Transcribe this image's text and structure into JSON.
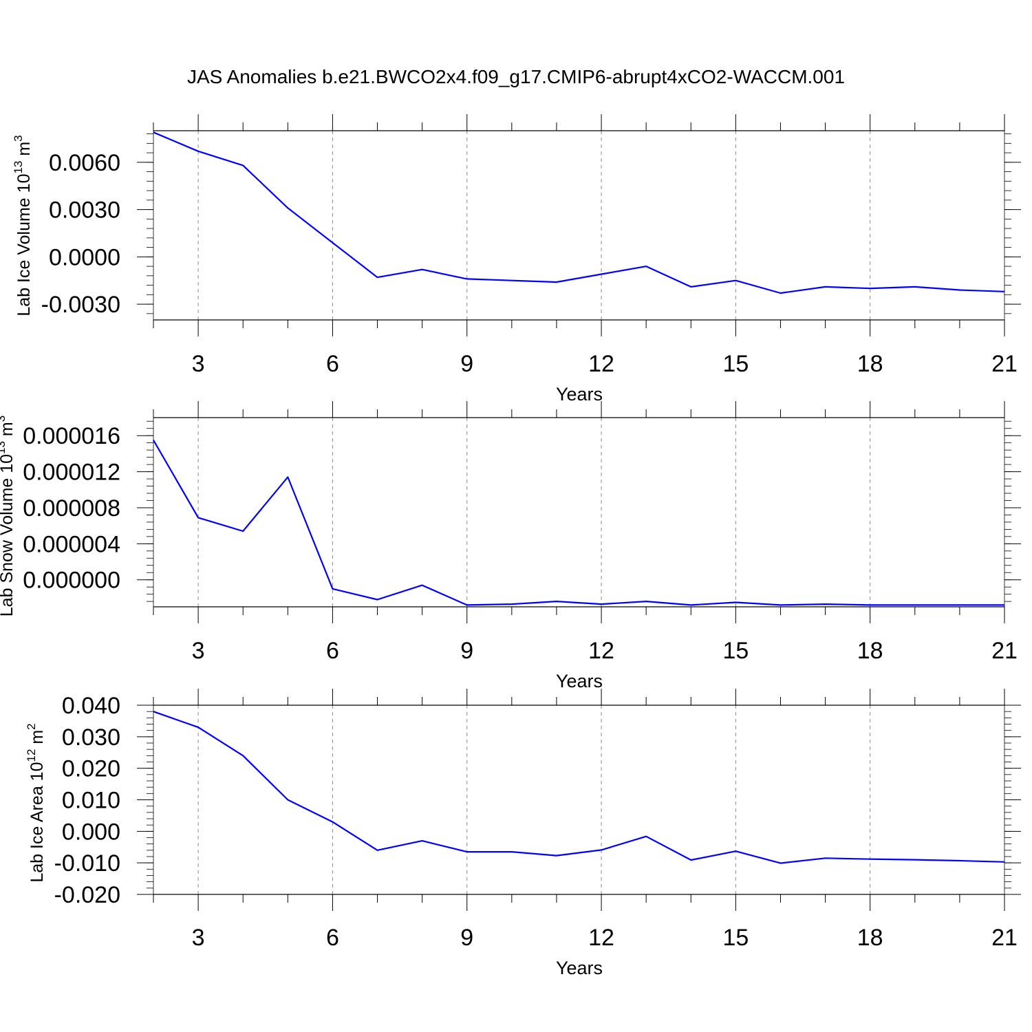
{
  "title": "JAS Anomalies b.e21.BWCO2x4.f09_g17.CMIP6-abrupt4xCO2-WACCM.001",
  "colors": {
    "series": "#0000ff",
    "axis": "#000000",
    "grid": "#888888"
  },
  "chart_data": [
    {
      "type": "line",
      "ylabel": {
        "main": "Lab Ice Volume 10",
        "sup": "13",
        "unit": " m",
        "unit_sup": "3"
      },
      "xlabel": "Years",
      "xlim": [
        2,
        21
      ],
      "ylim": [
        -0.004,
        0.008
      ],
      "x_ticks": [
        "3",
        "6",
        "9",
        "12",
        "15",
        "18",
        "21"
      ],
      "y_ticks": [
        "0.0060",
        "0.0030",
        "0.0000",
        "-0.0030"
      ],
      "grid": "vertical dashed at major x ticks",
      "series": [
        {
          "x": [
            2,
            3,
            4,
            5,
            6,
            7,
            8,
            9,
            10,
            11,
            12,
            13,
            14,
            15,
            16,
            17,
            18,
            19,
            20,
            21
          ],
          "values": [
            0.0079,
            0.0067,
            0.0058,
            0.0031,
            0.0009,
            -0.0013,
            -0.0008,
            -0.0014,
            -0.0015,
            -0.0016,
            -0.0011,
            -0.0006,
            -0.0019,
            -0.0015,
            -0.0023,
            -0.0019,
            -0.002,
            -0.0019,
            -0.0021,
            -0.0022
          ]
        }
      ]
    },
    {
      "type": "line",
      "ylabel": {
        "main": "Lab Snow Volume 10",
        "sup": "13",
        "unit": " m",
        "unit_sup": "3"
      },
      "xlabel": "Years",
      "xlim": [
        2,
        21
      ],
      "ylim": [
        -3e-06,
        1.8e-05
      ],
      "x_ticks": [
        "3",
        "6",
        "9",
        "12",
        "15",
        "18",
        "21"
      ],
      "y_ticks": [
        "0.000016",
        "0.000012",
        "0.000008",
        "0.000004",
        "0.000000"
      ],
      "grid": "vertical dashed at major x ticks",
      "series": [
        {
          "x": [
            2,
            3,
            4,
            5,
            6,
            7,
            8,
            9,
            10,
            11,
            12,
            13,
            14,
            15,
            16,
            17,
            18,
            19,
            20,
            21
          ],
          "values": [
            1.55e-05,
            6.9e-06,
            5.4e-06,
            1.14e-05,
            -1e-06,
            -2.2e-06,
            -6e-07,
            -2.8e-06,
            -2.7e-06,
            -2.4e-06,
            -2.7e-06,
            -2.4e-06,
            -2.8e-06,
            -2.5e-06,
            -2.8e-06,
            -2.7e-06,
            -2.8e-06,
            -2.8e-06,
            -2.8e-06,
            -2.8e-06
          ]
        }
      ]
    },
    {
      "type": "line",
      "ylabel": {
        "main": "Lab Ice Area 10",
        "sup": "12",
        "unit": " m",
        "unit_sup": "2"
      },
      "xlabel": "Years",
      "xlim": [
        2,
        21
      ],
      "ylim": [
        -0.02,
        0.04
      ],
      "x_ticks": [
        "3",
        "6",
        "9",
        "12",
        "15",
        "18",
        "21"
      ],
      "y_ticks": [
        "0.040",
        "0.030",
        "0.020",
        "0.010",
        "0.000",
        "-0.010",
        "-0.020"
      ],
      "grid": "vertical dashed at major x ticks",
      "series": [
        {
          "x": [
            2,
            3,
            4,
            5,
            6,
            7,
            8,
            9,
            10,
            11,
            12,
            13,
            14,
            15,
            16,
            17,
            18,
            19,
            20,
            21
          ],
          "values": [
            0.038,
            0.033,
            0.024,
            0.01,
            0.003,
            -0.006,
            -0.003,
            -0.0065,
            -0.0065,
            -0.0077,
            -0.0059,
            -0.0016,
            -0.0091,
            -0.0063,
            -0.0101,
            -0.0085,
            -0.0088,
            -0.009,
            -0.0093,
            -0.0097
          ]
        }
      ]
    }
  ]
}
